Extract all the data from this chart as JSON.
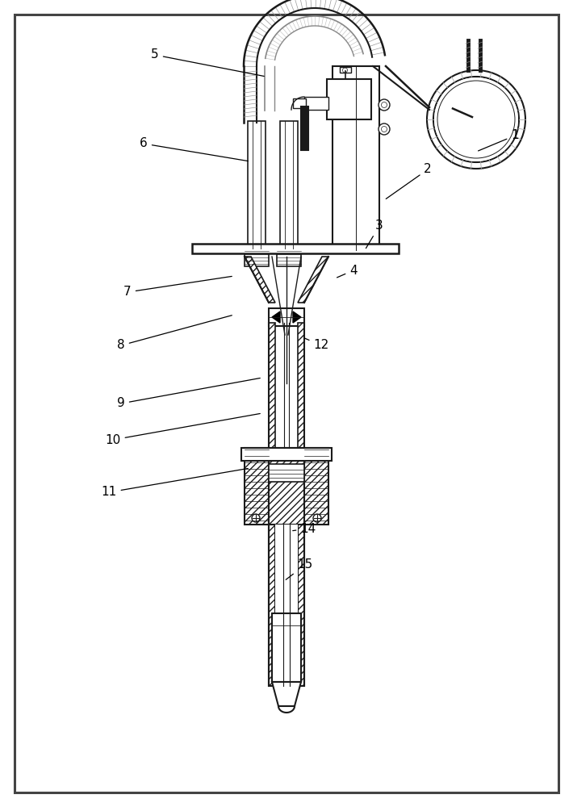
{
  "figsize": [
    7.1,
    10.0
  ],
  "dpi": 100,
  "lc": "#1a1a1a",
  "labels": [
    [
      "1",
      638,
      168,
      590,
      188
    ],
    [
      "2",
      530,
      210,
      476,
      248
    ],
    [
      "3",
      470,
      280,
      452,
      310
    ],
    [
      "4",
      438,
      335,
      415,
      345
    ],
    [
      "5",
      192,
      68,
      330,
      95
    ],
    [
      "6",
      178,
      178,
      310,
      200
    ],
    [
      "7",
      158,
      362,
      290,
      342
    ],
    [
      "8",
      150,
      428,
      290,
      390
    ],
    [
      "9",
      150,
      500,
      325,
      468
    ],
    [
      "10",
      140,
      545,
      325,
      512
    ],
    [
      "11",
      135,
      610,
      310,
      580
    ],
    [
      "12",
      398,
      428,
      375,
      418
    ],
    [
      "14",
      382,
      655,
      360,
      658
    ],
    [
      "15",
      378,
      700,
      352,
      720
    ]
  ]
}
